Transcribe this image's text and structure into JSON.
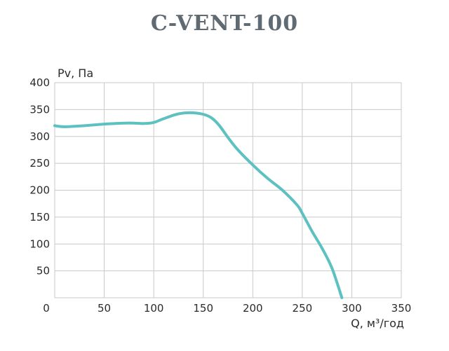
{
  "chart_data": {
    "type": "line",
    "title": "C-VENT-100",
    "xlabel": "Q, м³/год",
    "ylabel": "Pv, Па",
    "xlim": [
      0,
      350
    ],
    "ylim": [
      0,
      400
    ],
    "x_ticks": [
      "0",
      "50",
      "100",
      "150",
      "200",
      "250",
      "300",
      "350"
    ],
    "y_ticks": [
      "50",
      "100",
      "150",
      "200",
      "250",
      "300",
      "350",
      "400"
    ],
    "grid": true,
    "series": [
      {
        "name": "",
        "color": "#5cc1c0",
        "x": [
          0,
          10,
          30,
          50,
          75,
          90,
          100,
          110,
          125,
          140,
          155,
          165,
          175,
          185,
          200,
          215,
          230,
          245,
          250,
          260,
          270,
          280,
          290
        ],
        "y": [
          320,
          318,
          320,
          323,
          325,
          324,
          326,
          333,
          342,
          344,
          338,
          323,
          298,
          275,
          247,
          222,
          200,
          172,
          157,
          123,
          92,
          55,
          0
        ]
      }
    ]
  }
}
